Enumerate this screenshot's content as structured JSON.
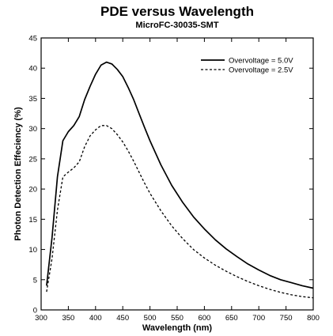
{
  "chart_data": {
    "type": "line",
    "title": "PDE versus Wavelength",
    "subtitle": "MicroFC-30035-SMT",
    "xlabel": "Wavelength (nm)",
    "ylabel": "Photon Detection Effeciency (%)",
    "xlim": [
      300,
      800
    ],
    "ylim": [
      0,
      45
    ],
    "xticks": [
      300,
      350,
      400,
      450,
      500,
      550,
      600,
      650,
      700,
      750,
      800
    ],
    "yticks": [
      0,
      5,
      10,
      15,
      20,
      25,
      30,
      35,
      40,
      45
    ],
    "grid": false,
    "legend_position": "top-right",
    "series": [
      {
        "name": "Overvoltage = 5.0V",
        "style": "solid",
        "color": "#000000",
        "x": [
          310,
          320,
          330,
          340,
          350,
          360,
          370,
          380,
          390,
          400,
          410,
          420,
          430,
          440,
          450,
          460,
          470,
          480,
          490,
          500,
          520,
          540,
          560,
          580,
          600,
          620,
          640,
          660,
          680,
          700,
          720,
          740,
          760,
          780,
          800
        ],
        "y": [
          4.0,
          12.0,
          22.0,
          28.0,
          29.5,
          30.5,
          32.0,
          34.8,
          37.0,
          39.0,
          40.5,
          41.0,
          40.7,
          39.8,
          38.6,
          36.8,
          34.8,
          32.5,
          30.2,
          28.0,
          24.0,
          20.6,
          17.8,
          15.4,
          13.4,
          11.6,
          10.1,
          8.8,
          7.6,
          6.6,
          5.7,
          5.0,
          4.5,
          4.0,
          3.6
        ]
      },
      {
        "name": "Overvoltage = 2.5V",
        "style": "dashed",
        "color": "#000000",
        "x": [
          310,
          320,
          330,
          340,
          350,
          360,
          370,
          380,
          390,
          400,
          410,
          420,
          430,
          440,
          450,
          460,
          470,
          480,
          490,
          500,
          520,
          540,
          560,
          580,
          600,
          620,
          640,
          660,
          680,
          700,
          720,
          740,
          760,
          780,
          800
        ],
        "y": [
          3.0,
          8.5,
          16.5,
          22.0,
          22.8,
          23.5,
          24.5,
          27.0,
          28.8,
          29.8,
          30.5,
          30.5,
          30.0,
          29.0,
          27.8,
          26.3,
          24.6,
          22.8,
          21.0,
          19.3,
          16.4,
          13.9,
          11.8,
          10.0,
          8.6,
          7.4,
          6.4,
          5.5,
          4.7,
          4.0,
          3.4,
          2.9,
          2.5,
          2.2,
          2.0
        ]
      }
    ]
  }
}
